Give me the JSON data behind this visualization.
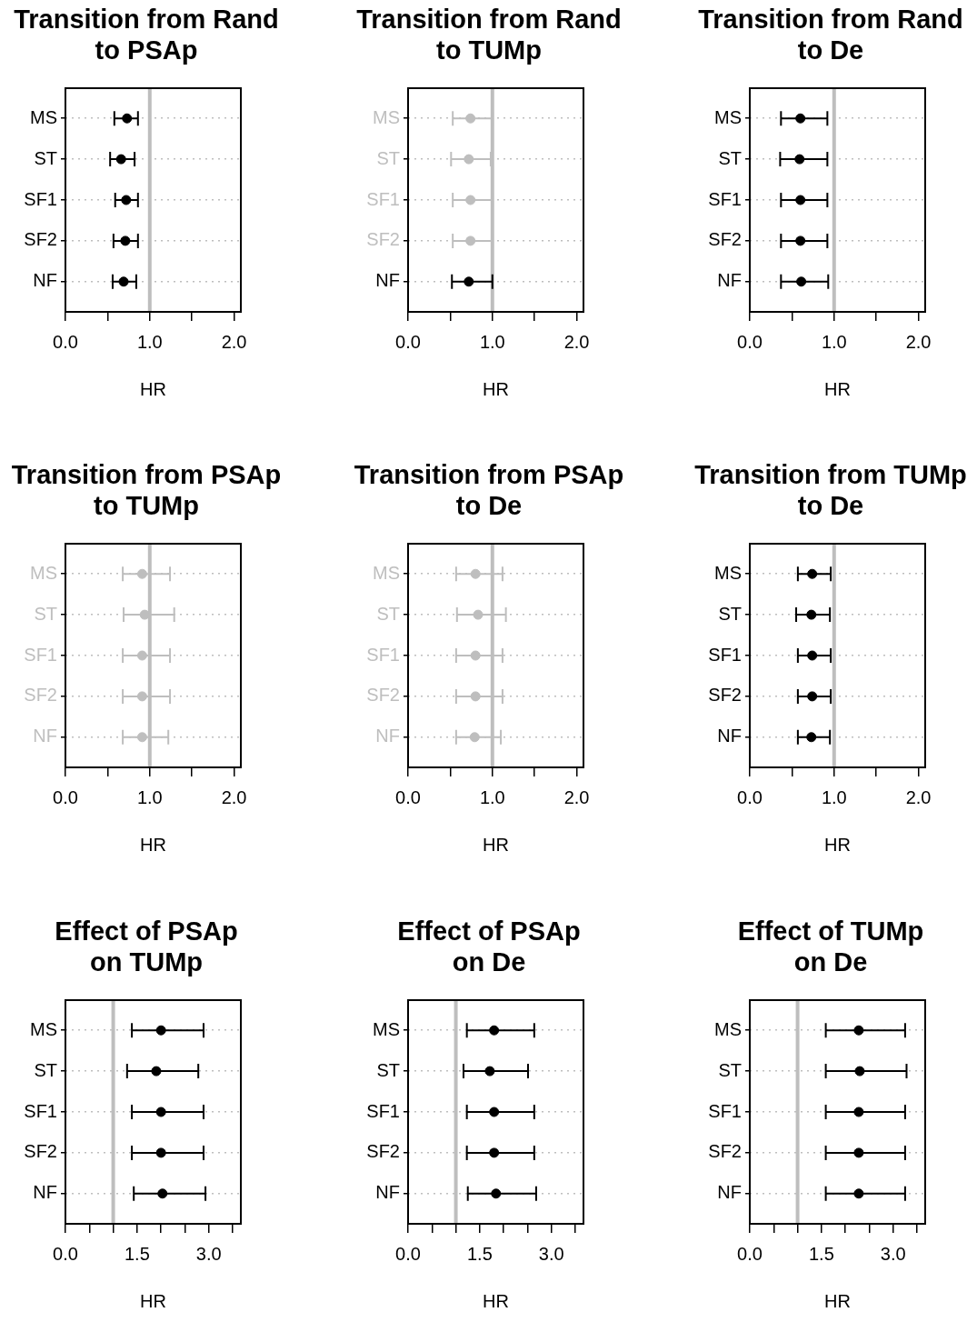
{
  "chart_data": [
    {
      "type": "scatter",
      "orientation": "horizontal",
      "title": "Transition from Rand\nto PSAp",
      "xlabel": "HR",
      "categories": [
        "MS",
        "ST",
        "SF1",
        "SF2",
        "NF"
      ],
      "values": [
        0.73,
        0.66,
        0.72,
        0.71,
        0.69
      ],
      "errors": [
        [
          0.58,
          0.86
        ],
        [
          0.53,
          0.82
        ],
        [
          0.59,
          0.86
        ],
        [
          0.57,
          0.86
        ],
        [
          0.56,
          0.84
        ]
      ],
      "colors": [
        "#000000",
        "#000000",
        "#000000",
        "#000000",
        "#000000"
      ],
      "xlim": [
        0,
        2.08
      ],
      "xticks": [
        {
          "value": 0,
          "label": "0.0"
        },
        {
          "value": 0.5,
          "label": null
        },
        {
          "value": 1,
          "label": "1.0"
        },
        {
          "value": 1.5,
          "label": null
        },
        {
          "value": 2,
          "label": "2.0"
        }
      ],
      "ref_lines": [
        {
          "axis": "x",
          "value": 1,
          "color": "#bebebe"
        }
      ],
      "grid": "y",
      "marker": "circle",
      "legend": false
    },
    {
      "type": "scatter",
      "orientation": "horizontal",
      "title": "Transition from Rand\nto TUMp",
      "xlabel": "HR",
      "categories": [
        "MS",
        "ST",
        "SF1",
        "SF2",
        "NF"
      ],
      "values": [
        0.74,
        0.72,
        0.74,
        0.74,
        0.72
      ],
      "errors": [
        [
          0.53,
          1.0
        ],
        [
          0.51,
          0.98
        ],
        [
          0.53,
          1.0
        ],
        [
          0.53,
          1.0
        ],
        [
          0.52,
          1.0
        ]
      ],
      "colors": [
        "#bebebe",
        "#bebebe",
        "#bebebe",
        "#bebebe",
        "#000000"
      ],
      "xlim": [
        0,
        2.08
      ],
      "xticks": [
        {
          "value": 0,
          "label": "0.0"
        },
        {
          "value": 0.5,
          "label": null
        },
        {
          "value": 1,
          "label": "1.0"
        },
        {
          "value": 1.5,
          "label": null
        },
        {
          "value": 2,
          "label": "2.0"
        }
      ],
      "ref_lines": [
        {
          "axis": "x",
          "value": 1,
          "color": "#bebebe"
        }
      ],
      "grid": "y",
      "marker": "circle",
      "legend": false
    },
    {
      "type": "scatter",
      "orientation": "horizontal",
      "title": "Transition from Rand\nto De",
      "xlabel": "HR",
      "categories": [
        "MS",
        "ST",
        "SF1",
        "SF2",
        "NF"
      ],
      "values": [
        0.6,
        0.59,
        0.6,
        0.6,
        0.61
      ],
      "errors": [
        [
          0.37,
          0.92
        ],
        [
          0.36,
          0.92
        ],
        [
          0.37,
          0.92
        ],
        [
          0.37,
          0.92
        ],
        [
          0.37,
          0.93
        ]
      ],
      "colors": [
        "#000000",
        "#000000",
        "#000000",
        "#000000",
        "#000000"
      ],
      "xlim": [
        0,
        2.08
      ],
      "xticks": [
        {
          "value": 0,
          "label": "0.0"
        },
        {
          "value": 0.5,
          "label": null
        },
        {
          "value": 1,
          "label": "1.0"
        },
        {
          "value": 1.5,
          "label": null
        },
        {
          "value": 2,
          "label": "2.0"
        }
      ],
      "ref_lines": [
        {
          "axis": "x",
          "value": 1,
          "color": "#bebebe"
        }
      ],
      "grid": "y",
      "marker": "circle",
      "legend": false
    },
    {
      "type": "scatter",
      "orientation": "horizontal",
      "title": "Transition from PSAp\nto TUMp",
      "xlabel": "HR",
      "categories": [
        "MS",
        "ST",
        "SF1",
        "SF2",
        "NF"
      ],
      "values": [
        0.91,
        0.94,
        0.91,
        0.91,
        0.91
      ],
      "errors": [
        [
          0.68,
          1.24
        ],
        [
          0.69,
          1.29
        ],
        [
          0.68,
          1.24
        ],
        [
          0.68,
          1.24
        ],
        [
          0.68,
          1.22
        ]
      ],
      "colors": [
        "#bebebe",
        "#bebebe",
        "#bebebe",
        "#bebebe",
        "#bebebe"
      ],
      "xlim": [
        0,
        2.08
      ],
      "xticks": [
        {
          "value": 0,
          "label": "0.0"
        },
        {
          "value": 0.5,
          "label": null
        },
        {
          "value": 1,
          "label": "1.0"
        },
        {
          "value": 1.5,
          "label": null
        },
        {
          "value": 2,
          "label": "2.0"
        }
      ],
      "ref_lines": [
        {
          "axis": "x",
          "value": 1,
          "color": "#bebebe"
        }
      ],
      "grid": "y",
      "marker": "circle",
      "legend": false
    },
    {
      "type": "scatter",
      "orientation": "horizontal",
      "title": "Transition from PSAp\nto De",
      "xlabel": "HR",
      "categories": [
        "MS",
        "ST",
        "SF1",
        "SF2",
        "NF"
      ],
      "values": [
        0.8,
        0.83,
        0.8,
        0.8,
        0.79
      ],
      "errors": [
        [
          0.57,
          1.12
        ],
        [
          0.58,
          1.16
        ],
        [
          0.57,
          1.12
        ],
        [
          0.57,
          1.12
        ],
        [
          0.57,
          1.1
        ]
      ],
      "colors": [
        "#bebebe",
        "#bebebe",
        "#bebebe",
        "#bebebe",
        "#bebebe"
      ],
      "xlim": [
        0,
        2.08
      ],
      "xticks": [
        {
          "value": 0,
          "label": "0.0"
        },
        {
          "value": 0.5,
          "label": null
        },
        {
          "value": 1,
          "label": "1.0"
        },
        {
          "value": 1.5,
          "label": null
        },
        {
          "value": 2,
          "label": "2.0"
        }
      ],
      "ref_lines": [
        {
          "axis": "x",
          "value": 1,
          "color": "#bebebe"
        }
      ],
      "grid": "y",
      "marker": "circle",
      "legend": false
    },
    {
      "type": "scatter",
      "orientation": "horizontal",
      "title": "Transition from TUMp\nto De",
      "xlabel": "HR",
      "categories": [
        "MS",
        "ST",
        "SF1",
        "SF2",
        "NF"
      ],
      "values": [
        0.74,
        0.73,
        0.74,
        0.74,
        0.73
      ],
      "errors": [
        [
          0.57,
          0.96
        ],
        [
          0.55,
          0.95
        ],
        [
          0.57,
          0.96
        ],
        [
          0.57,
          0.96
        ],
        [
          0.57,
          0.95
        ]
      ],
      "colors": [
        "#000000",
        "#000000",
        "#000000",
        "#000000",
        "#000000"
      ],
      "xlim": [
        0,
        2.08
      ],
      "xticks": [
        {
          "value": 0,
          "label": "0.0"
        },
        {
          "value": 0.5,
          "label": null
        },
        {
          "value": 1,
          "label": "1.0"
        },
        {
          "value": 1.5,
          "label": null
        },
        {
          "value": 2,
          "label": "2.0"
        }
      ],
      "ref_lines": [
        {
          "axis": "x",
          "value": 1,
          "color": "#bebebe"
        }
      ],
      "grid": "y",
      "marker": "circle",
      "legend": false
    },
    {
      "type": "scatter",
      "orientation": "horizontal",
      "title": "Effect of PSAp\non TUMp",
      "xlabel": "HR",
      "categories": [
        "MS",
        "ST",
        "SF1",
        "SF2",
        "NF"
      ],
      "values": [
        2.0,
        1.9,
        2.0,
        2.0,
        2.03
      ],
      "errors": [
        [
          1.39,
          2.89
        ],
        [
          1.29,
          2.78
        ],
        [
          1.39,
          2.89
        ],
        [
          1.39,
          2.89
        ],
        [
          1.43,
          2.93
        ]
      ],
      "colors": [
        "#000000",
        "#000000",
        "#000000",
        "#000000",
        "#000000"
      ],
      "xlim": [
        0,
        3.67
      ],
      "xticks": [
        {
          "value": 0,
          "label": "0.0"
        },
        {
          "value": 0.5,
          "label": null
        },
        {
          "value": 1,
          "label": null
        },
        {
          "value": 1.5,
          "label": "1.5"
        },
        {
          "value": 2,
          "label": null
        },
        {
          "value": 2.5,
          "label": null
        },
        {
          "value": 3,
          "label": "3.0"
        },
        {
          "value": 3.5,
          "label": null
        }
      ],
      "ref_lines": [
        {
          "axis": "x",
          "value": 1,
          "color": "#bebebe"
        }
      ],
      "grid": "y",
      "marker": "circle",
      "legend": false
    },
    {
      "type": "scatter",
      "orientation": "horizontal",
      "title": "Effect of PSAp\non De",
      "xlabel": "HR",
      "categories": [
        "MS",
        "ST",
        "SF1",
        "SF2",
        "NF"
      ],
      "values": [
        1.8,
        1.71,
        1.8,
        1.8,
        1.84
      ],
      "errors": [
        [
          1.23,
          2.64
        ],
        [
          1.16,
          2.51
        ],
        [
          1.23,
          2.64
        ],
        [
          1.23,
          2.64
        ],
        [
          1.25,
          2.68
        ]
      ],
      "colors": [
        "#000000",
        "#000000",
        "#000000",
        "#000000",
        "#000000"
      ],
      "xlim": [
        0,
        3.67
      ],
      "xticks": [
        {
          "value": 0,
          "label": "0.0"
        },
        {
          "value": 0.5,
          "label": null
        },
        {
          "value": 1,
          "label": null
        },
        {
          "value": 1.5,
          "label": "1.5"
        },
        {
          "value": 2,
          "label": null
        },
        {
          "value": 2.5,
          "label": null
        },
        {
          "value": 3,
          "label": "3.0"
        },
        {
          "value": 3.5,
          "label": null
        }
      ],
      "ref_lines": [
        {
          "axis": "x",
          "value": 1,
          "color": "#bebebe"
        }
      ],
      "grid": "y",
      "marker": "circle",
      "legend": false
    },
    {
      "type": "scatter",
      "orientation": "horizontal",
      "title": "Effect of TUMp\non De",
      "xlabel": "HR",
      "categories": [
        "MS",
        "ST",
        "SF1",
        "SF2",
        "NF"
      ],
      "values": [
        2.28,
        2.3,
        2.28,
        2.28,
        2.28
      ],
      "errors": [
        [
          1.59,
          3.25
        ],
        [
          1.59,
          3.28
        ],
        [
          1.59,
          3.25
        ],
        [
          1.59,
          3.25
        ],
        [
          1.59,
          3.25
        ]
      ],
      "colors": [
        "#000000",
        "#000000",
        "#000000",
        "#000000",
        "#000000"
      ],
      "xlim": [
        0,
        3.67
      ],
      "xticks": [
        {
          "value": 0,
          "label": "0.0"
        },
        {
          "value": 0.5,
          "label": null
        },
        {
          "value": 1,
          "label": null
        },
        {
          "value": 1.5,
          "label": "1.5"
        },
        {
          "value": 2,
          "label": null
        },
        {
          "value": 2.5,
          "label": null
        },
        {
          "value": 3,
          "label": "3.0"
        },
        {
          "value": 3.5,
          "label": null
        }
      ],
      "ref_lines": [
        {
          "axis": "x",
          "value": 1,
          "color": "#bebebe"
        }
      ],
      "grid": "y",
      "marker": "circle",
      "legend": false
    }
  ]
}
